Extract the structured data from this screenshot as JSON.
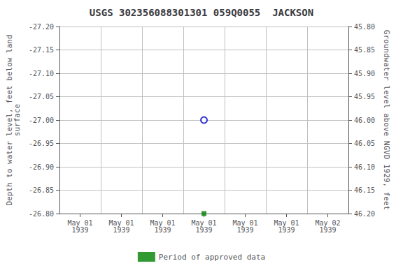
{
  "chart_data": {
    "type": "scatter",
    "title": "USGS 302356088301301 059Q0055  JACKSON",
    "y_label": "Depth to water level, feet below land\nsurface",
    "y2_label": "Groundwater level above NGVD 1929, feet",
    "categories": [
      "May 01\n1939",
      "May 01\n1939",
      "May 01\n1939",
      "May 01\n1939",
      "May 01\n1939",
      "May 01\n1939",
      "May 02\n1939"
    ],
    "series": [
      {
        "color": "#0000cc",
        "marker": "open_circle",
        "values": [
          null,
          null,
          null,
          -27.0,
          null,
          null,
          null
        ]
      },
      {
        "name": "Period of approved data",
        "color": "#008000",
        "marker": "square",
        "values": [
          null,
          null,
          null,
          -26.8,
          null,
          null,
          null
        ]
      }
    ],
    "ylim": [
      -26.8,
      -27.2
    ],
    "yticks": [
      {
        "value": -27.2,
        "label": "-27.20"
      },
      -27.15,
      {
        "value": -27.1,
        "label": "-27.10"
      },
      -27.05,
      {
        "value": -27.0,
        "label": "-27.00"
      },
      -26.95,
      {
        "value": -26.9,
        "label": "-26.90"
      },
      -26.85,
      {
        "value": -26.8,
        "label": "-26.80"
      }
    ],
    "y2lim": [
      46.2,
      45.8
    ],
    "y2ticks": [
      {
        "value": 46.2,
        "label": "46.20"
      },
      46.15,
      {
        "value": 46.1,
        "label": "46.10"
      },
      46.05,
      {
        "value": 46.0,
        "label": "46.00"
      },
      45.95,
      {
        "value": 45.9,
        "label": "45.90"
      },
      45.85,
      {
        "value": 45.8,
        "label": "45.80"
      }
    ],
    "grid": true,
    "legend": "bottom"
  }
}
